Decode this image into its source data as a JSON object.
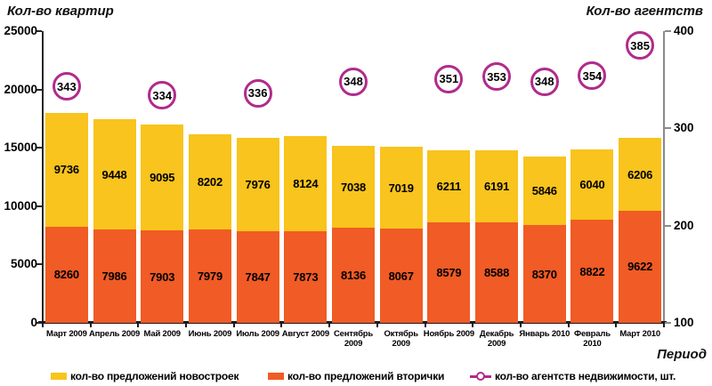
{
  "titles": {
    "left_axis": "Кол-во квартир",
    "right_axis": "Кол-во агентств",
    "x_axis": "Период"
  },
  "chart_data": {
    "type": "bar",
    "stacked": true,
    "title": "",
    "categories": [
      "Март 2009",
      "Апрель 2009",
      "Май 2009",
      "Июнь 2009",
      "Июль 2009",
      "Август 2009",
      "Сентябрь 2009",
      "Октябрь 2009",
      "Ноябрь 2009",
      "Декабрь 2009",
      "Январь 2010",
      "Февраль 2010",
      "Март 2010"
    ],
    "x_tick_labels": [
      "Март 2009",
      "Апрель 2009",
      "Май 2009",
      "Июнь 2009",
      "Июль 2009",
      "Август 2009",
      "Сентябрь\n2009",
      "Октябрь\n2009",
      "Ноябрь 2009",
      "Декабрь\n2009",
      "Январь 2010",
      "Февраль\n2010",
      "Март 2010"
    ],
    "series": [
      {
        "name": "кол-во предложений новостроек",
        "role": "stack-top",
        "color": "#F8C41D",
        "values": [
          9736,
          9448,
          9095,
          8202,
          7976,
          8124,
          7038,
          7019,
          6211,
          6191,
          5846,
          6040,
          6206
        ]
      },
      {
        "name": "кол-во предложений вторички",
        "role": "stack-bottom",
        "color": "#F15B25",
        "values": [
          8260,
          7986,
          7903,
          7979,
          7847,
          7873,
          8136,
          8067,
          8579,
          8588,
          8370,
          8822,
          9622
        ]
      },
      {
        "name": "кол-во агентств недвижимости, шт.",
        "role": "point-markers",
        "color": "#B12B8D",
        "values": [
          343,
          null,
          334,
          null,
          336,
          null,
          348,
          null,
          351,
          353,
          348,
          354,
          385
        ]
      }
    ],
    "left_axis": {
      "label": "Кол-во квартир",
      "min": 0,
      "max": 25000,
      "step": 5000,
      "tick_values": [
        0,
        5000,
        10000,
        15000,
        20000,
        25000
      ]
    },
    "right_axis": {
      "label": "Кол-во агентств",
      "min": 100,
      "max": 400,
      "step": 100,
      "tick_values": [
        100,
        200,
        300,
        400
      ]
    },
    "xlabel": "Период",
    "grid": false,
    "legend_position": "bottom"
  },
  "legend": {
    "items": [
      {
        "label": "кол-во предложений новостроек",
        "swatch": "rect",
        "color": "#F8C41D"
      },
      {
        "label": "кол-во предложений вторички",
        "swatch": "rect",
        "color": "#F15B25"
      },
      {
        "label": "кол-во агентств недвижимости, шт.",
        "swatch": "circle-line",
        "color": "#B12B8D"
      }
    ]
  }
}
